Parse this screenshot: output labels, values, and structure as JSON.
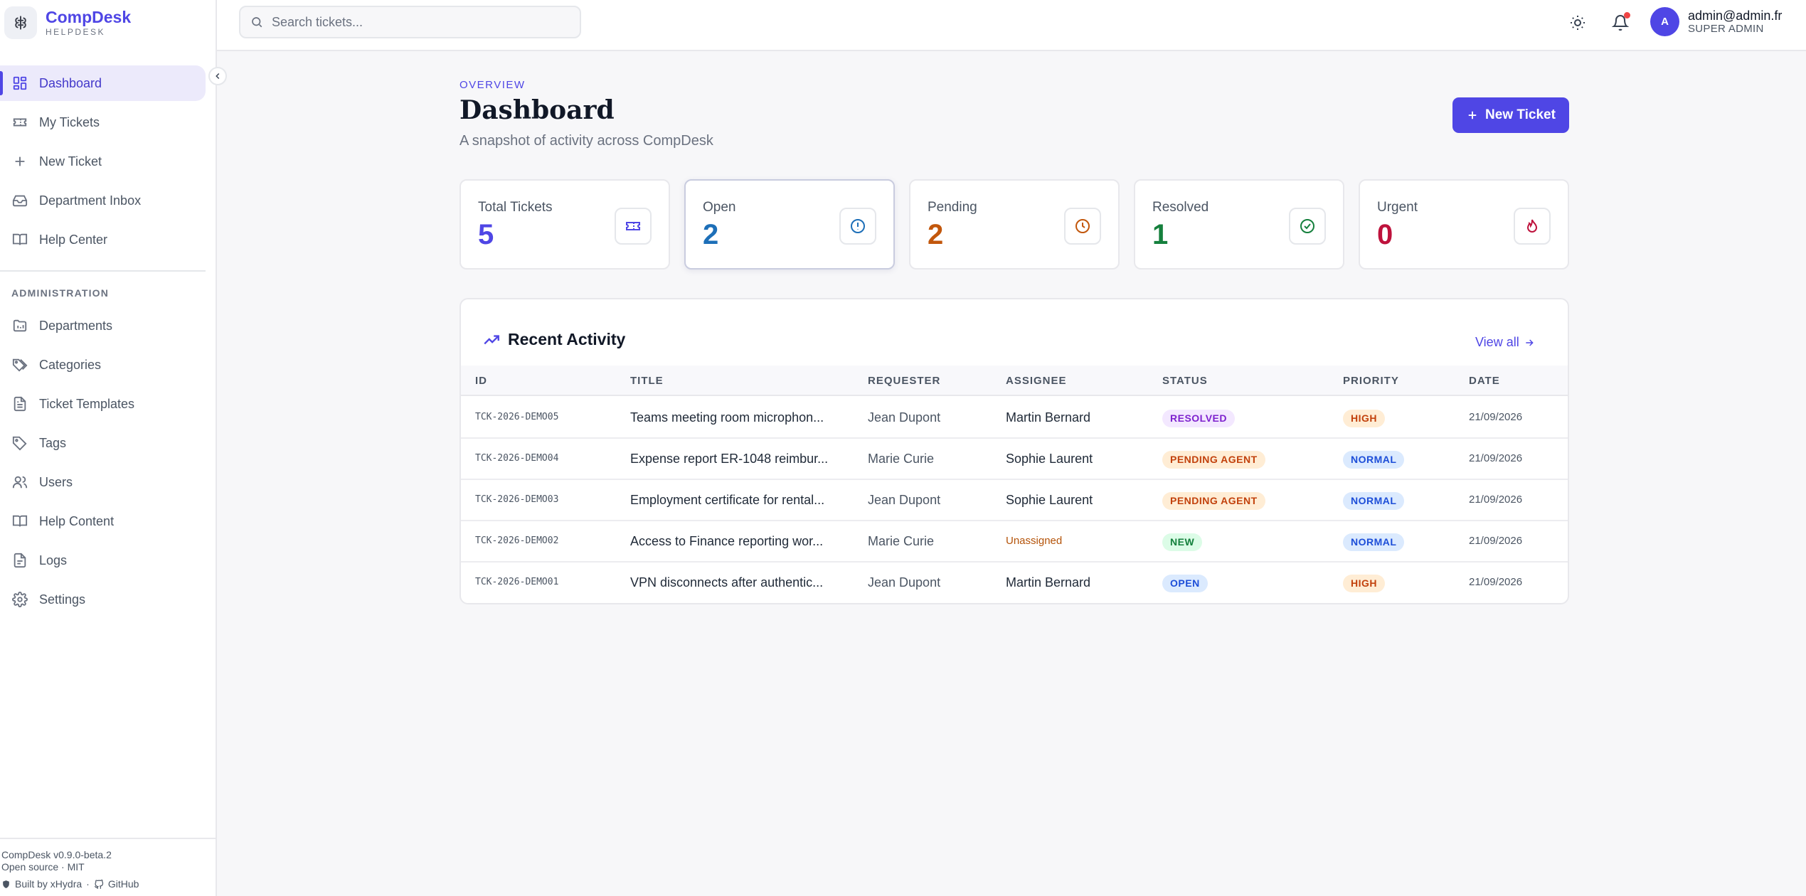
{
  "brand": {
    "name": "CompDesk",
    "sub": "HELPDESK"
  },
  "sidebar": {
    "items": [
      {
        "label": "Dashboard",
        "icon": "dashboard-icon",
        "active": true
      },
      {
        "label": "My Tickets",
        "icon": "ticket-icon"
      },
      {
        "label": "New Ticket",
        "icon": "plus-icon"
      },
      {
        "label": "Department Inbox",
        "icon": "inbox-icon"
      },
      {
        "label": "Help Center",
        "icon": "book-icon"
      }
    ],
    "admin_label": "ADMINISTRATION",
    "admin_items": [
      {
        "label": "Departments",
        "icon": "folder-icon"
      },
      {
        "label": "Categories",
        "icon": "tags-icon"
      },
      {
        "label": "Ticket Templates",
        "icon": "file-icon"
      },
      {
        "label": "Tags",
        "icon": "tag-icon"
      },
      {
        "label": "Users",
        "icon": "users-icon"
      },
      {
        "label": "Help Content",
        "icon": "book-icon"
      },
      {
        "label": "Logs",
        "icon": "log-icon"
      },
      {
        "label": "Settings",
        "icon": "gear-icon"
      }
    ],
    "footer": {
      "version": "CompDesk v0.9.0-beta.2",
      "license": "Open source · MIT",
      "built_by": "Built by xHydra",
      "separator": "·",
      "github": "GitHub"
    }
  },
  "topbar": {
    "search_placeholder": "Search tickets...",
    "user": {
      "initial": "A",
      "email": "admin@admin.fr",
      "role": "SUPER ADMIN"
    }
  },
  "page": {
    "eyebrow": "OVERVIEW",
    "title": "Dashboard",
    "subtitle": "A snapshot of activity across CompDesk",
    "new_ticket_label": "New Ticket"
  },
  "stats": [
    {
      "label": "Total Tickets",
      "value": "5",
      "color": "#4f46e5",
      "icon": "ticket-icon"
    },
    {
      "label": "Open",
      "value": "2",
      "color": "#1d6fb8",
      "icon": "alert-circle-icon"
    },
    {
      "label": "Pending",
      "value": "2",
      "color": "#c2570c",
      "icon": "clock-icon"
    },
    {
      "label": "Resolved",
      "value": "1",
      "color": "#15803d",
      "icon": "check-circle-icon"
    },
    {
      "label": "Urgent",
      "value": "0",
      "color": "#be123c",
      "icon": "flame-icon"
    }
  ],
  "activity": {
    "title": "Recent Activity",
    "view_all": "View all",
    "columns": [
      "ID",
      "TITLE",
      "REQUESTER",
      "ASSIGNEE",
      "STATUS",
      "PRIORITY",
      "DATE"
    ],
    "rows": [
      {
        "id": "TCK-2026-DEMO05",
        "title": "Teams meeting room microphon...",
        "requester": "Jean Dupont",
        "assignee": "Martin Bernard",
        "status": "RESOLVED",
        "priority": "HIGH",
        "date": "21/09/2026"
      },
      {
        "id": "TCK-2026-DEMO04",
        "title": "Expense report ER-1048 reimbur...",
        "requester": "Marie Curie",
        "assignee": "Sophie Laurent",
        "status": "PENDING AGENT",
        "priority": "NORMAL",
        "date": "21/09/2026"
      },
      {
        "id": "TCK-2026-DEMO03",
        "title": "Employment certificate for rental...",
        "requester": "Jean Dupont",
        "assignee": "Sophie Laurent",
        "status": "PENDING AGENT",
        "priority": "NORMAL",
        "date": "21/09/2026"
      },
      {
        "id": "TCK-2026-DEMO02",
        "title": "Access to Finance reporting wor...",
        "requester": "Marie Curie",
        "assignee": "Unassigned",
        "status": "NEW",
        "priority": "NORMAL",
        "date": "21/09/2026"
      },
      {
        "id": "TCK-2026-DEMO01",
        "title": "VPN disconnects after authentic...",
        "requester": "Jean Dupont",
        "assignee": "Martin Bernard",
        "status": "OPEN",
        "priority": "HIGH",
        "date": "21/09/2026"
      }
    ]
  },
  "colors": {
    "accent": "#4f46e5",
    "status_resolved": "#f3e8ff",
    "status_pending": "#ffedd5",
    "status_new": "#dcfce7",
    "status_open": "#dbeafe",
    "priority_high": "#ffedd5",
    "priority_normal": "#dbeafe"
  }
}
